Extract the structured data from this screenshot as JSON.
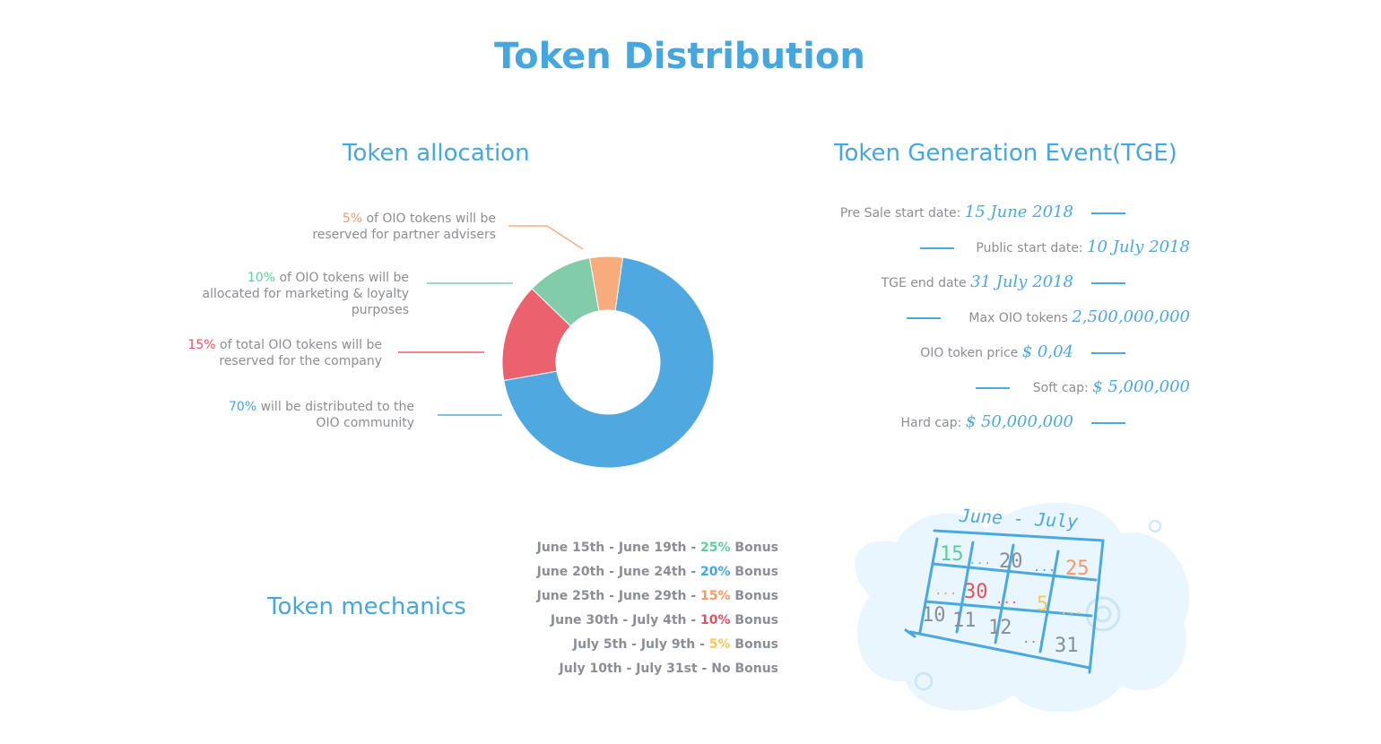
{
  "page_title": "Token Distribution",
  "allocation": {
    "title": "Token allocation",
    "labels": [
      {
        "pct": "5%",
        "text_line1": " of OIO tokens will be",
        "text_line2": "reserved for partner advisers",
        "text_line3": ""
      },
      {
        "pct": "10%",
        "text_line1": " of OIO tokens will be",
        "text_line2": "allocated for marketing & loyalty",
        "text_line3": "purposes"
      },
      {
        "pct": "15%",
        "text_line1": " of total OIO tokens will be",
        "text_line2": "reserved for the company",
        "text_line3": ""
      },
      {
        "pct": "70%",
        "text_line1": " will be distributed to the",
        "text_line2": "OIO community",
        "text_line3": ""
      }
    ]
  },
  "chart_data": {
    "type": "pie",
    "title": "Token allocation",
    "donut": true,
    "categories": [
      "OIO community",
      "company",
      "marketing & loyalty",
      "partner advisers"
    ],
    "values": [
      70,
      15,
      10,
      5
    ],
    "colors": [
      "#4fa9e0",
      "#eb616d",
      "#82ccaa",
      "#f8ac7e"
    ]
  },
  "tge": {
    "title": "Token Generation Event(TGE)",
    "rows": [
      {
        "label": "Pre Sale start date: ",
        "value": "15 June 2018"
      },
      {
        "label": "Public start date: ",
        "value": "10 July 2018"
      },
      {
        "label": "TGE end date ",
        "value": "31 July 2018"
      },
      {
        "label": "Max OIO tokens ",
        "value": "2,500,000,000"
      },
      {
        "label": "OIO token price ",
        "value": "$ 0,04"
      },
      {
        "label": "Soft cap: ",
        "value": "$ 5,000,000"
      },
      {
        "label": "Hard cap: ",
        "value": "$ 50,000,000"
      }
    ]
  },
  "mechanics": {
    "title": "Token mechanics",
    "rows": [
      {
        "dates": "June 15th - June 19th - ",
        "pct": "25%",
        "suffix": " Bonus",
        "color": "#5bcf9a"
      },
      {
        "dates": "June 20th - June 24th - ",
        "pct": "20%",
        "suffix": " Bonus",
        "color": "#46a6de"
      },
      {
        "dates": "June 25th - June 29th - ",
        "pct": "15%",
        "suffix": " Bonus",
        "color": "#f59a66"
      },
      {
        "dates": "June 30th - July 4th - ",
        "pct": "10%",
        "suffix": " Bonus",
        "color": "#eb4e5c"
      },
      {
        "dates": "July 5th - July 9th - ",
        "pct": "5%",
        "suffix": " Bonus",
        "color": "#f7c75a"
      },
      {
        "dates": "July 10th - July 31st - No Bonus",
        "pct": "",
        "suffix": "",
        "color": "#8a8e96"
      }
    ]
  },
  "calendar": {
    "heading": "June - July",
    "cells": [
      "15",
      "...",
      "20",
      "...",
      "25",
      "...",
      "30",
      "...",
      "5",
      "...",
      "10",
      "11",
      "12",
      "...",
      "31"
    ]
  }
}
